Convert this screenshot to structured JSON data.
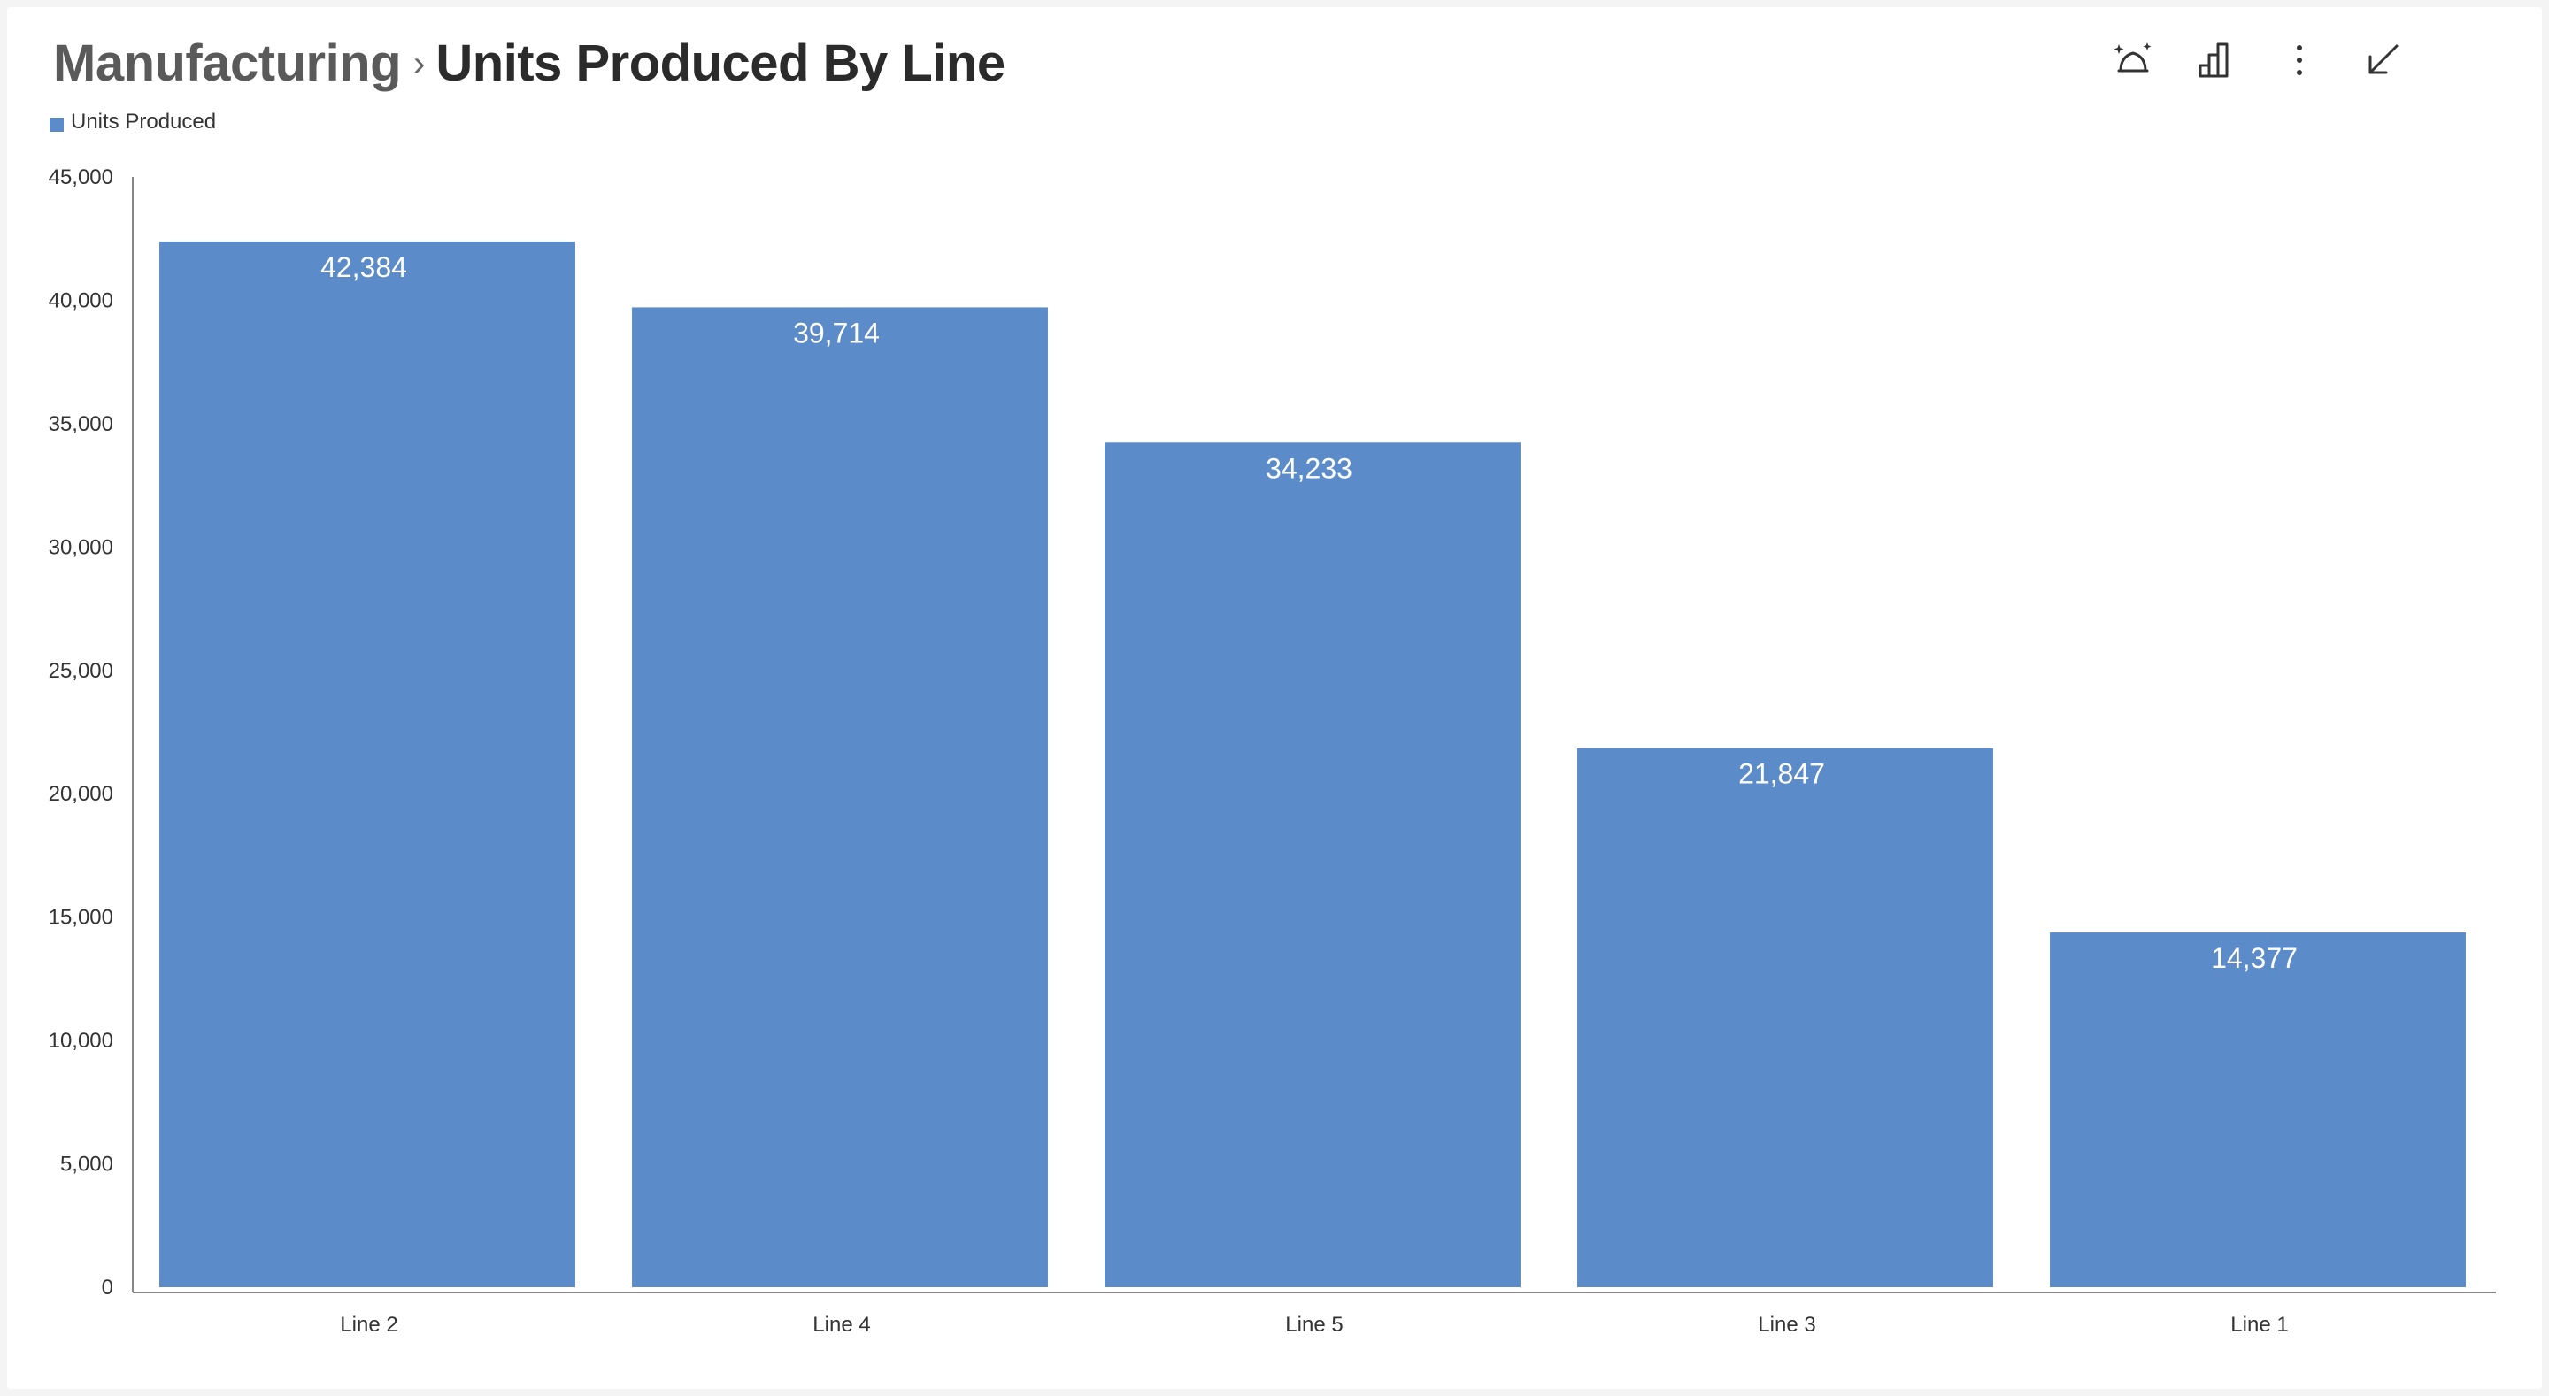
{
  "header": {
    "breadcrumb": "Manufacturing",
    "separator": "›",
    "title": "Units Produced By Line"
  },
  "toolbar": {
    "icons": [
      "insight-sparkle-icon",
      "chart-type-icon",
      "more-vertical-icon",
      "collapse-icon"
    ]
  },
  "colors": {
    "bar": "#5b8cc9",
    "axis": "#888888",
    "text": "#333333"
  },
  "chart_data": {
    "type": "bar",
    "categories": [
      "Line 2",
      "Line 4",
      "Line 5",
      "Line 3",
      "Line 1"
    ],
    "series": [
      {
        "name": "Units Produced",
        "values": [
          42384,
          39714,
          34233,
          21847,
          14377
        ]
      }
    ],
    "data_labels": [
      "42,384",
      "39,714",
      "34,233",
      "21,847",
      "14,377"
    ],
    "ylim": [
      0,
      45000
    ],
    "yticks": [
      0,
      5000,
      10000,
      15000,
      20000,
      25000,
      30000,
      35000,
      40000,
      45000
    ],
    "ytick_labels": [
      "0",
      "5,000",
      "10,000",
      "15,000",
      "20,000",
      "25,000",
      "30,000",
      "35,000",
      "40,000",
      "45,000"
    ],
    "legend": "top-left",
    "grid": false
  }
}
